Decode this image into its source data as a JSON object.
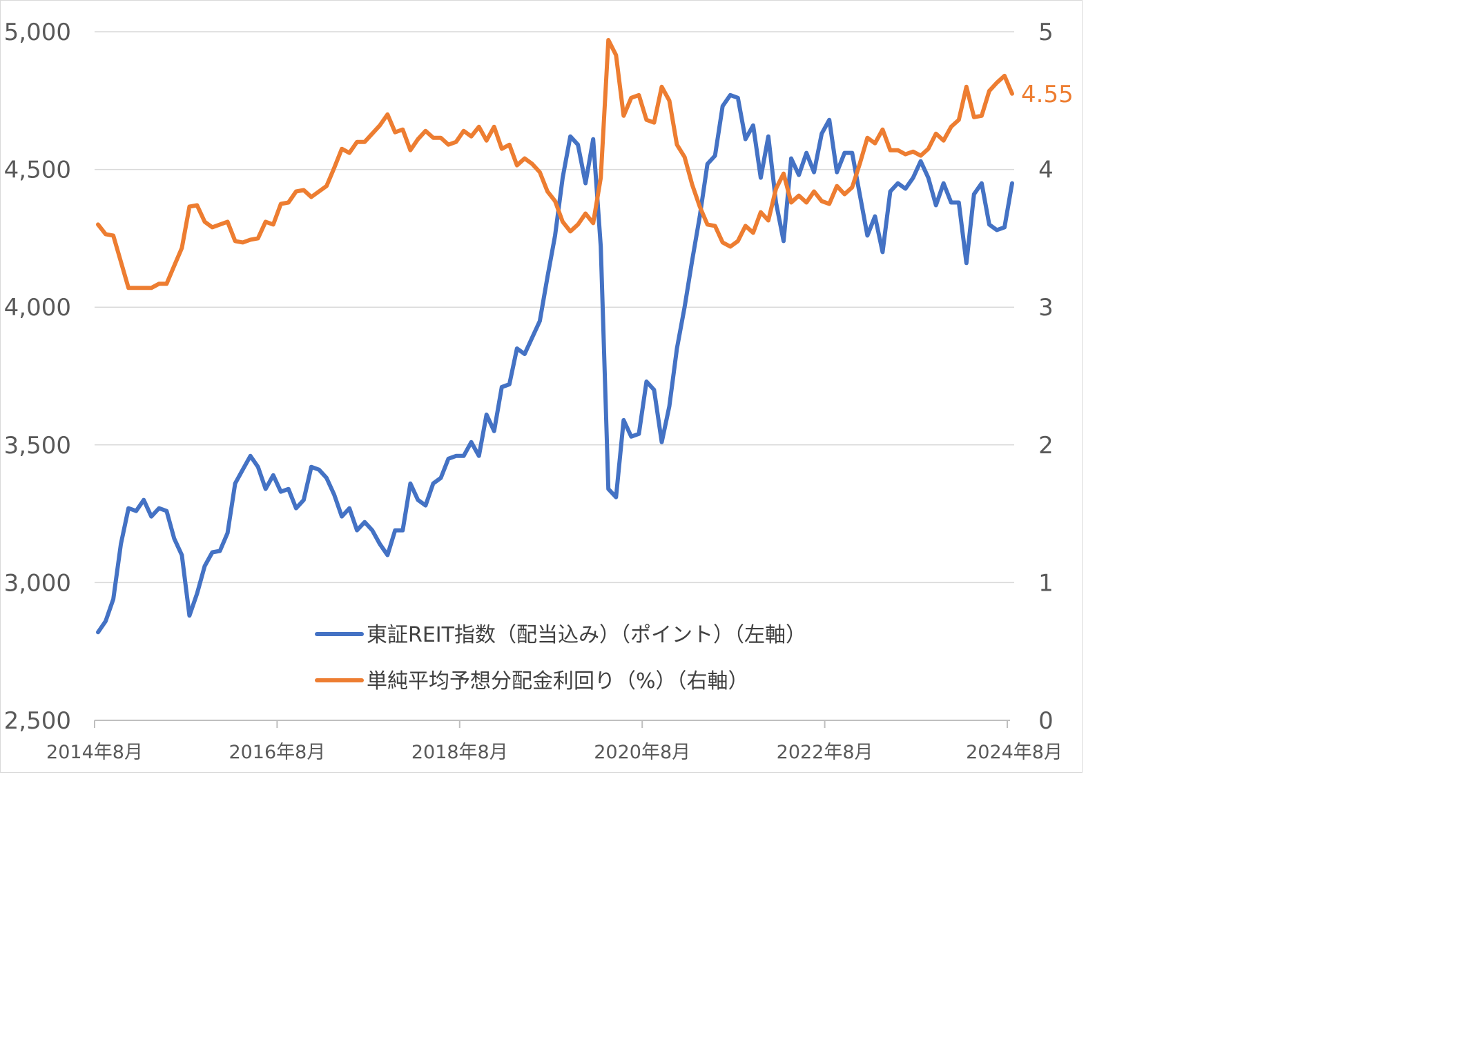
{
  "chart_data": {
    "type": "line",
    "title": "",
    "xlabel": "",
    "ylabel": "",
    "x_tick_labels": [
      "2014年8月",
      "2016年8月",
      "2018年8月",
      "2020年8月",
      "2022年8月",
      "2024年8月"
    ],
    "y_left": {
      "min": 2500,
      "max": 5000,
      "ticks": [
        2500,
        3000,
        3500,
        4000,
        4500,
        5000
      ],
      "tick_labels": [
        "2,500",
        "3,000",
        "3,500",
        "4,000",
        "4,500",
        "5,000"
      ]
    },
    "y_right": {
      "min": 0,
      "max": 5,
      "ticks": [
        0,
        1,
        2,
        3,
        4,
        5
      ],
      "tick_labels": [
        "0",
        "1",
        "2",
        "3",
        "4",
        "5"
      ]
    },
    "grid": true,
    "legend_position": "bottom-center",
    "series": [
      {
        "name": "東証REIT指数（配当込み）（ポイント）（左軸）",
        "axis": "left",
        "color": "#4472c4",
        "values": [
          2820,
          2860,
          2940,
          3140,
          3270,
          3260,
          3300,
          3240,
          3270,
          3260,
          3160,
          3100,
          2880,
          2960,
          3060,
          3110,
          3115,
          3180,
          3360,
          3410,
          3460,
          3420,
          3340,
          3390,
          3330,
          3340,
          3270,
          3300,
          3420,
          3410,
          3380,
          3320,
          3240,
          3270,
          3190,
          3220,
          3190,
          3140,
          3100,
          3190,
          3190,
          3360,
          3300,
          3280,
          3360,
          3380,
          3450,
          3460,
          3460,
          3510,
          3460,
          3610,
          3550,
          3710,
          3720,
          3850,
          3830,
          3890,
          3950,
          4110,
          4260,
          4470,
          4620,
          4590,
          4450,
          4610,
          4220,
          3340,
          3310,
          3590,
          3530,
          3540,
          3730,
          3700,
          3510,
          3640,
          3850,
          4000,
          4170,
          4330,
          4520,
          4550,
          4730,
          4770,
          4760,
          4610,
          4660,
          4470,
          4620,
          4380,
          4240,
          4540,
          4480,
          4560,
          4490,
          4630,
          4680,
          4490,
          4560,
          4560,
          4410,
          4260,
          4330,
          4200,
          4420,
          4450,
          4430,
          4470,
          4530,
          4470,
          4370,
          4450,
          4380,
          4380,
          4160,
          4410,
          4450,
          4300,
          4280,
          4290,
          4450
        ]
      },
      {
        "name": "単純平均予想分配金利回り（%）（右軸）",
        "axis": "right",
        "color": "#ed7d31",
        "end_label": "4.55",
        "values": [
          3.6,
          3.53,
          3.52,
          3.33,
          3.14,
          3.14,
          3.14,
          3.14,
          3.17,
          3.17,
          3.3,
          3.43,
          3.73,
          3.74,
          3.62,
          3.58,
          3.6,
          3.62,
          3.48,
          3.47,
          3.49,
          3.5,
          3.62,
          3.6,
          3.75,
          3.76,
          3.84,
          3.85,
          3.8,
          3.84,
          3.88,
          4.01,
          4.15,
          4.12,
          4.2,
          4.2,
          4.26,
          4.32,
          4.4,
          4.27,
          4.29,
          4.14,
          4.22,
          4.28,
          4.23,
          4.23,
          4.18,
          4.2,
          4.28,
          4.24,
          4.31,
          4.21,
          4.31,
          4.15,
          4.18,
          4.03,
          4.08,
          4.04,
          3.98,
          3.84,
          3.77,
          3.62,
          3.55,
          3.6,
          3.68,
          3.61,
          3.94,
          4.94,
          4.83,
          4.39,
          4.52,
          4.54,
          4.36,
          4.34,
          4.6,
          4.5,
          4.18,
          4.09,
          3.89,
          3.73,
          3.6,
          3.59,
          3.47,
          3.44,
          3.48,
          3.59,
          3.54,
          3.69,
          3.63,
          3.86,
          3.97,
          3.76,
          3.81,
          3.76,
          3.84,
          3.77,
          3.75,
          3.88,
          3.82,
          3.87,
          4.04,
          4.23,
          4.19,
          4.29,
          4.14,
          4.14,
          4.11,
          4.13,
          4.1,
          4.15,
          4.26,
          4.21,
          4.31,
          4.36,
          4.6,
          4.38,
          4.39,
          4.57,
          4.63,
          4.68,
          4.55
        ]
      }
    ]
  }
}
